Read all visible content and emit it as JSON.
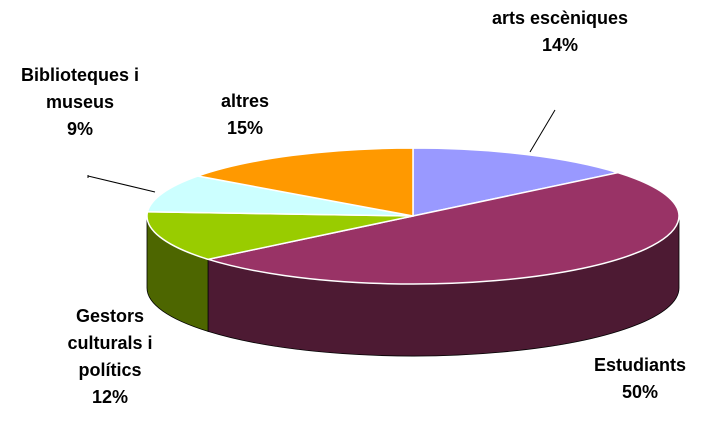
{
  "chart_data": {
    "type": "pie3d",
    "categories": [
      "arts escèniques",
      "Estudiants",
      "Gestors culturals i polítics",
      "Biblioteques i museus",
      "altres"
    ],
    "values": [
      14,
      50,
      12,
      9,
      15
    ],
    "value_labels": [
      "14%",
      "50%",
      "12%",
      "9%",
      "15%"
    ],
    "colors": [
      "#9999ff",
      "#993366",
      "#99cc00",
      "#ccffff",
      "#ff9900"
    ]
  }
}
